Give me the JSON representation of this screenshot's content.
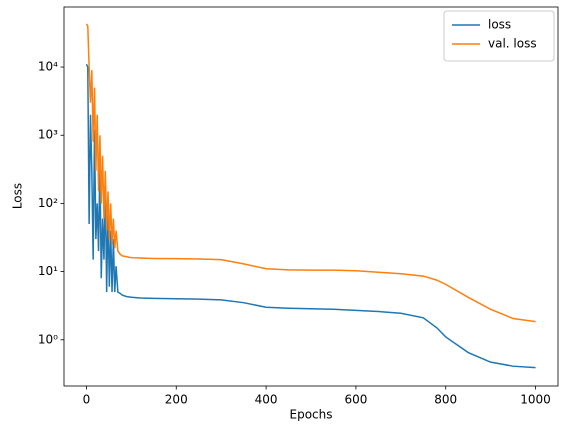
{
  "chart_data": {
    "type": "line",
    "x_label": "Epochs",
    "y_label": "Loss",
    "x": [
      0,
      3,
      6,
      9,
      12,
      15,
      18,
      21,
      24,
      27,
      30,
      33,
      36,
      39,
      42,
      45,
      48,
      51,
      54,
      57,
      60,
      63,
      66,
      70,
      75,
      80,
      90,
      100,
      120,
      150,
      200,
      250,
      300,
      350,
      400,
      450,
      500,
      550,
      600,
      650,
      700,
      750,
      780,
      800,
      850,
      900,
      950,
      1000
    ],
    "series": [
      {
        "name": "loss",
        "color": "#1f77b4",
        "values": [
          11000,
          10000,
          50,
          2000,
          300,
          15,
          1200,
          30,
          100,
          20,
          400,
          8,
          60,
          15,
          200,
          5,
          80,
          6,
          40,
          5,
          30,
          5,
          12,
          5,
          4.8,
          4.5,
          4.3,
          4.2,
          4.1,
          4.05,
          4.0,
          3.95,
          3.85,
          3.5,
          3.0,
          2.9,
          2.85,
          2.8,
          2.7,
          2.6,
          2.45,
          2.1,
          1.5,
          1.1,
          0.65,
          0.47,
          0.41,
          0.39
        ]
      },
      {
        "name": "val. loss",
        "color": "#ff7f0e",
        "values": [
          43000,
          40000,
          10000,
          3000,
          9000,
          800,
          5000,
          300,
          2000,
          150,
          1000,
          100,
          500,
          60,
          300,
          40,
          150,
          30,
          100,
          25,
          60,
          22,
          40,
          20,
          18,
          17,
          16.5,
          16,
          15.8,
          15.6,
          15.5,
          15.3,
          15,
          13,
          11,
          10.6,
          10.5,
          10.5,
          10.3,
          9.8,
          9.3,
          8.6,
          7.5,
          6.5,
          4.2,
          2.8,
          2.05,
          1.85
        ]
      }
    ],
    "xlim": [
      -49.95,
      1049.95
    ],
    "xticks": [
      0,
      200,
      400,
      600,
      800,
      1000
    ],
    "ylim": [
      0.21,
      76000
    ],
    "ylog": true,
    "yticks": [
      {
        "value": 1,
        "label": "10⁰"
      },
      {
        "value": 10,
        "label": "10¹"
      },
      {
        "value": 100,
        "label": "10²"
      },
      {
        "value": 1000,
        "label": "10³"
      },
      {
        "value": 10000,
        "label": "10⁴"
      }
    ],
    "legend": "upper right"
  }
}
